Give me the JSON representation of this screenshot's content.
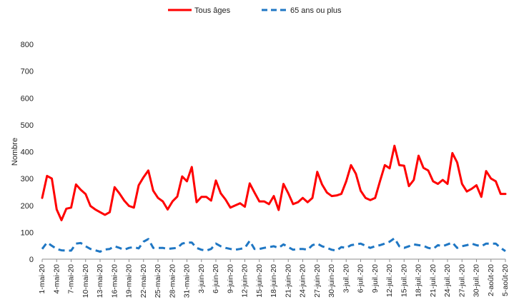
{
  "chart_data": {
    "type": "line",
    "title": "",
    "xlabel": "",
    "ylabel": "Nombre",
    "ylim": [
      0,
      800
    ],
    "yticks": [
      0,
      100,
      200,
      300,
      400,
      500,
      600,
      700,
      800
    ],
    "grid": false,
    "legend_position": "top-center",
    "x_tick_labels": [
      "1-mai-20",
      "4-mai-20",
      "7-mai-20",
      "10-mai-20",
      "13-mai-20",
      "16-mai-20",
      "19-mai-20",
      "22-mai-20",
      "25-mai-20",
      "28-mai-20",
      "31-mai-20",
      "3-juin-20",
      "6-juin-20",
      "9-juin-20",
      "12-juin-20",
      "15-juin-20",
      "18-juin-20",
      "21-juin-20",
      "24-juin-20",
      "27-juin-20",
      "30-juin-20",
      "3-juil.-20",
      "6-juil.-20",
      "9-juil.-20",
      "12-juil.-20",
      "15-juil.-20",
      "18-juil.-20",
      "21-juil.-20",
      "24-juil.-20",
      "27-juil.-20",
      "30-juil.-20",
      "2-août-20",
      "5-août-20"
    ],
    "x_tick_every": 3,
    "series": [
      {
        "name": "Tous âges",
        "color": "#ff0000",
        "style": "solid",
        "values": [
          228,
          310,
          300,
          185,
          145,
          188,
          192,
          278,
          258,
          242,
          198,
          185,
          175,
          165,
          175,
          268,
          245,
          218,
          198,
          192,
          275,
          305,
          330,
          255,
          228,
          215,
          185,
          215,
          233,
          308,
          290,
          343,
          212,
          232,
          232,
          218,
          293,
          245,
          222,
          192,
          200,
          208,
          195,
          282,
          248,
          215,
          215,
          205,
          235,
          183,
          280,
          245,
          205,
          212,
          228,
          212,
          228,
          325,
          278,
          248,
          235,
          237,
          243,
          290,
          350,
          318,
          255,
          228,
          220,
          228,
          290,
          350,
          338,
          422,
          350,
          348,
          272,
          295,
          385,
          340,
          330,
          290,
          280,
          295,
          280,
          395,
          360,
          280,
          252,
          262,
          275,
          232,
          328,
          300,
          290,
          243,
          243
        ]
      },
      {
        "name": "65 ans ou plus",
        "color": "#1f77c4",
        "style": "dashed",
        "values": [
          38,
          62,
          50,
          38,
          33,
          32,
          32,
          58,
          60,
          48,
          38,
          33,
          28,
          36,
          38,
          48,
          42,
          35,
          42,
          45,
          40,
          65,
          75,
          42,
          42,
          42,
          38,
          40,
          42,
          58,
          62,
          62,
          42,
          35,
          32,
          38,
          58,
          48,
          42,
          38,
          35,
          38,
          42,
          68,
          38,
          38,
          42,
          45,
          48,
          42,
          55,
          45,
          35,
          38,
          38,
          35,
          52,
          58,
          48,
          42,
          35,
          32,
          45,
          42,
          52,
          55,
          58,
          50,
          42,
          48,
          52,
          58,
          65,
          78,
          48,
          42,
          48,
          55,
          52,
          50,
          42,
          38,
          52,
          48,
          55,
          62,
          42,
          48,
          52,
          58,
          52,
          48,
          58,
          58,
          58,
          42,
          30
        ]
      }
    ]
  }
}
